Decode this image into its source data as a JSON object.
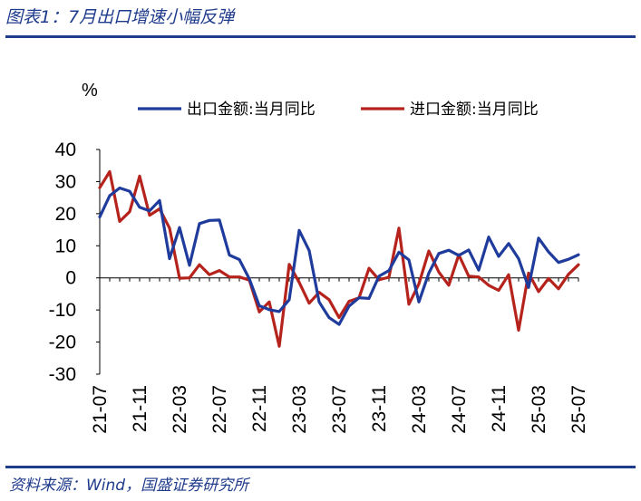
{
  "figure_title": "图表1：7月出口增速小幅反弹",
  "source": "资料来源：Wind，国盛证券研究所",
  "chart_data": {
    "type": "line",
    "unit_label": "%",
    "ylim": [
      -30,
      40
    ],
    "yticks": [
      40,
      30,
      20,
      10,
      0,
      -10,
      -20,
      -30
    ],
    "xticks": [
      "21-07",
      "21-11",
      "22-03",
      "22-07",
      "22-11",
      "23-03",
      "23-07",
      "23-11",
      "24-03",
      "24-07",
      "24-11",
      "25-03",
      "25-07"
    ],
    "x": [
      "21-07",
      "21-08",
      "21-09",
      "21-10",
      "21-11",
      "21-12",
      "22-01",
      "22-02",
      "22-03",
      "22-04",
      "22-05",
      "22-06",
      "22-07",
      "22-08",
      "22-09",
      "22-10",
      "22-11",
      "22-12",
      "23-01",
      "23-02",
      "23-03",
      "23-04",
      "23-05",
      "23-06",
      "23-07",
      "23-08",
      "23-09",
      "23-10",
      "23-11",
      "23-12",
      "24-01",
      "24-02",
      "24-03",
      "24-04",
      "24-05",
      "24-06",
      "24-07",
      "24-08",
      "24-09",
      "24-10",
      "24-11",
      "24-12",
      "25-01",
      "25-02",
      "25-03",
      "25-04",
      "25-05",
      "25-06",
      "25-07"
    ],
    "series": [
      {
        "name": "出口金额:当月同比",
        "color": "#1f3b9c",
        "values": [
          19,
          25.6,
          28,
          27,
          22,
          20.9,
          24.1,
          6,
          15.7,
          3.9,
          16.9,
          17.9,
          18,
          7.1,
          5.7,
          -0.3,
          -8.7,
          -9.9,
          -10.5,
          -6.8,
          14.8,
          8.5,
          -7.5,
          -12.4,
          -14.5,
          -8.8,
          -6.2,
          -6.4,
          0.5,
          2.3,
          8,
          5.6,
          -7.5,
          1.5,
          7.6,
          8.6,
          7,
          8.7,
          2.4,
          12.7,
          6.7,
          10.7,
          6,
          -3,
          12.4,
          8.1,
          4.8,
          5.8,
          7.2
        ]
      },
      {
        "name": "进口金额:当月同比",
        "color": "#b5231c",
        "values": [
          28.1,
          33.1,
          17.6,
          20.6,
          31.7,
          19.5,
          21.5,
          15.5,
          -0.1,
          0,
          4.1,
          1,
          2.3,
          0.3,
          0.3,
          -0.7,
          -10.6,
          -7.5,
          -21.3,
          4.2,
          -1.4,
          -7.9,
          -4.5,
          -6.8,
          -12.4,
          -7.3,
          -6.2,
          3,
          -0.6,
          0.2,
          15.5,
          -8.2,
          -1.9,
          8.4,
          1.8,
          -2.3,
          7.2,
          0.5,
          0.3,
          -2.3,
          -3.9,
          1,
          -16.3,
          1.5,
          -4.3,
          -0.2,
          -3.4,
          1.1,
          4.1
        ]
      }
    ],
    "grid": false,
    "legend_position": "top"
  }
}
